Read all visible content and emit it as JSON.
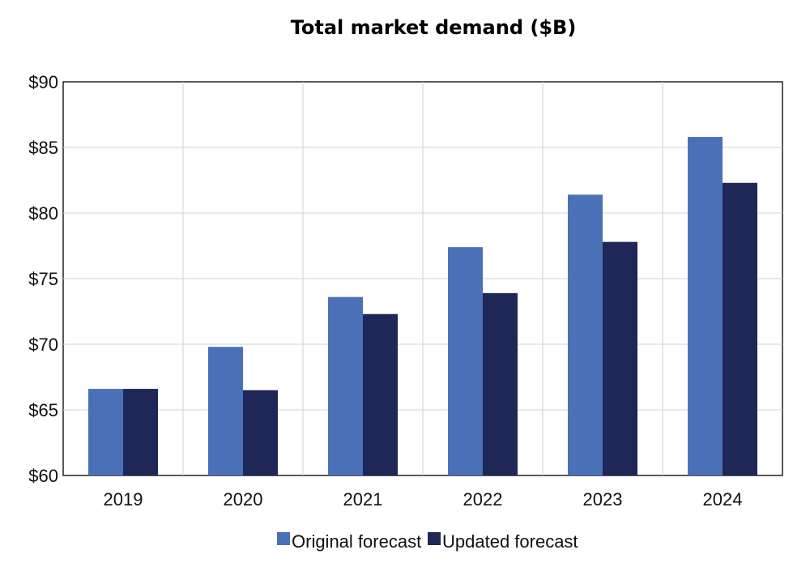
{
  "chart_data": {
    "type": "bar",
    "title": "Total market demand ($B)",
    "xlabel": "",
    "ylabel": "",
    "categories": [
      "2019",
      "2020",
      "2021",
      "2022",
      "2023",
      "2024"
    ],
    "series": [
      {
        "name": "Original forecast",
        "color": "#4a71b8",
        "values": [
          66.6,
          69.8,
          73.6,
          77.4,
          81.4,
          85.8
        ]
      },
      {
        "name": "Updated forecast",
        "color": "#1e2756",
        "values": [
          66.6,
          66.5,
          72.3,
          73.9,
          77.8,
          82.3
        ]
      }
    ],
    "ylim": [
      60,
      90
    ],
    "yticks": [
      60,
      65,
      70,
      75,
      80,
      85,
      90
    ],
    "ytick_labels": [
      "$60",
      "$65",
      "$70",
      "$75",
      "$80",
      "$85",
      "$90"
    ],
    "grid": true,
    "legend_position": "bottom-center"
  }
}
